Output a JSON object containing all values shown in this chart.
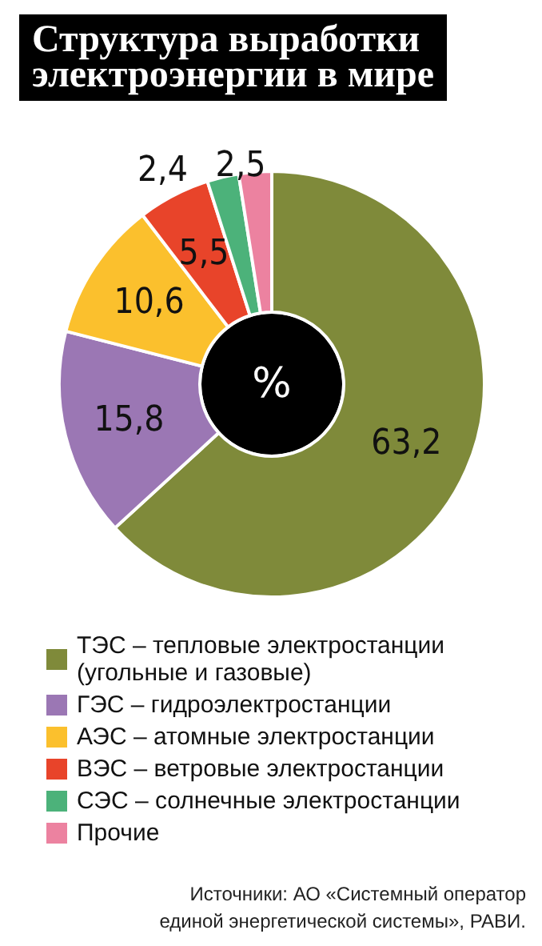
{
  "chart_data": {
    "type": "donut",
    "title": "Структура выработки электроэнергии в мире",
    "categories": [
      "ТЭС – тепловые электростанции (угольные и газовые)",
      "ГЭС – гидроэлектростанции",
      "АЭС – атомные электростанции",
      "ВЭС – ветровые электростанции",
      "СЭС – солнечные электростанции",
      "Прочие"
    ],
    "values": [
      63.2,
      15.8,
      10.6,
      5.5,
      2.4,
      2.5
    ],
    "colors": [
      "#7f8a3a",
      "#9b77b4",
      "#fbc02d",
      "#e8442a",
      "#4cb27a",
      "#ec82a0"
    ],
    "value_labels": [
      "63,2",
      "15,8",
      "10,6",
      "5,5",
      "2,4",
      "2,5"
    ],
    "legend": "bottom left",
    "annotations": [
      "%",
      "Источники: АО «Системный оператор единой энергетической системы», РАВИ."
    ]
  }
}
